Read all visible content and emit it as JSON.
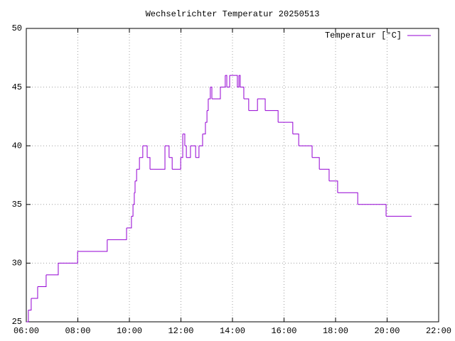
{
  "chart_data": {
    "type": "line",
    "title": "Wechselrichter Temperatur 20250513",
    "x": [
      6.0,
      6.08,
      6.19,
      6.44,
      6.77,
      7.24,
      7.99,
      9.14,
      9.89,
      10.08,
      10.14,
      10.19,
      10.22,
      10.28,
      10.39,
      10.52,
      10.69,
      10.8,
      10.94,
      11.38,
      11.54,
      11.66,
      11.99,
      12.07,
      12.15,
      12.21,
      12.37,
      12.57,
      12.7,
      12.84,
      12.95,
      13.01,
      13.06,
      13.14,
      13.2,
      13.53,
      13.72,
      13.78,
      13.89,
      14.19,
      14.25,
      14.3,
      14.44,
      14.63,
      14.97,
      15.27,
      15.77,
      16.34,
      16.57,
      17.09,
      17.37,
      17.75,
      18.08,
      18.86,
      19.96,
      20.95
    ],
    "series": [
      {
        "name": "Temperatur [°C]",
        "color": "#9400d3",
        "values": [
          25,
          26,
          27,
          28,
          29,
          30,
          31,
          32,
          33,
          34,
          35,
          36,
          37,
          38,
          39,
          40,
          39,
          38,
          38,
          40,
          39,
          38,
          39,
          41,
          40,
          39,
          40,
          39,
          40,
          41,
          42,
          43,
          44,
          45,
          44,
          45,
          46,
          45,
          46,
          45,
          46,
          45,
          44,
          43,
          44,
          43,
          42,
          41,
          40,
          39,
          38,
          37,
          36,
          35,
          34,
          34
        ]
      }
    ],
    "xlim": [
      6,
      22
    ],
    "xticks": [
      {
        "value": 6,
        "label": "06:00"
      },
      {
        "value": 8,
        "label": "08:00"
      },
      {
        "value": 10,
        "label": "10:00"
      },
      {
        "value": 12,
        "label": "12:00"
      },
      {
        "value": 14,
        "label": "14:00"
      },
      {
        "value": 16,
        "label": "16:00"
      },
      {
        "value": 18,
        "label": "18:00"
      },
      {
        "value": 20,
        "label": "20:00"
      },
      {
        "value": 22,
        "label": "22:00"
      }
    ],
    "ylim": [
      25,
      50
    ],
    "yticks": [
      25,
      30,
      35,
      40,
      45,
      50
    ],
    "grid": true,
    "step": true,
    "legend": "top-right"
  }
}
